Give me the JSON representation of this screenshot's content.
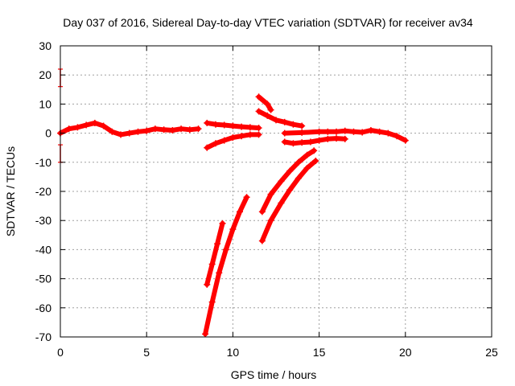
{
  "chart_data": {
    "type": "scatter",
    "title": "Day 037 of 2016, Sidereal Day-to-day VTEC variation (SDTVAR) for receiver av34",
    "xlabel": "GPS time / hours",
    "ylabel": "SDTVAR / TECUs",
    "xlim": [
      0,
      25
    ],
    "ylim": [
      -70,
      30
    ],
    "xticks": [
      0,
      5,
      10,
      15,
      20,
      25
    ],
    "yticks": [
      -70,
      -60,
      -50,
      -40,
      -30,
      -20,
      -10,
      0,
      10,
      20,
      30
    ],
    "grid": true,
    "legend": "none",
    "colors": {
      "series": "#ff0000",
      "grid": "#a0a0a0",
      "axis": "#000000"
    },
    "series": [
      {
        "points": [
          [
            0.0,
            0.0
          ],
          [
            0.5,
            1.5
          ],
          [
            1.0,
            2.0
          ],
          [
            1.5,
            2.8
          ],
          [
            2.0,
            3.5
          ],
          [
            2.5,
            2.5
          ],
          [
            3.0,
            0.5
          ],
          [
            3.5,
            -0.5
          ],
          [
            4.0,
            0.0
          ],
          [
            4.5,
            0.5
          ],
          [
            5.0,
            0.8
          ],
          [
            5.5,
            1.5
          ],
          [
            6.0,
            1.2
          ],
          [
            6.5,
            1.0
          ],
          [
            7.0,
            1.5
          ],
          [
            7.5,
            1.2
          ],
          [
            8.0,
            1.5
          ]
        ]
      },
      {
        "points": [
          [
            8.5,
            -5.0
          ],
          [
            9.0,
            -3.5
          ],
          [
            9.5,
            -2.5
          ],
          [
            10.0,
            -1.5
          ],
          [
            10.5,
            -1.0
          ],
          [
            11.0,
            -0.5
          ],
          [
            11.5,
            -0.5
          ]
        ]
      },
      {
        "points": [
          [
            8.5,
            3.5
          ],
          [
            9.0,
            3.0
          ],
          [
            9.5,
            2.8
          ],
          [
            10.0,
            2.5
          ],
          [
            10.5,
            2.2
          ],
          [
            11.0,
            2.0
          ],
          [
            11.5,
            1.8
          ]
        ]
      },
      {
        "points": [
          [
            11.5,
            12.5
          ],
          [
            12.0,
            10.0
          ],
          [
            12.2,
            8.0
          ]
        ]
      },
      {
        "points": [
          [
            11.5,
            7.5
          ],
          [
            12.0,
            6.0
          ],
          [
            12.5,
            4.5
          ],
          [
            13.0,
            3.8
          ],
          [
            13.5,
            3.0
          ],
          [
            14.0,
            2.5
          ]
        ]
      },
      {
        "points": [
          [
            8.5,
            -52.0
          ],
          [
            8.8,
            -45.0
          ],
          [
            9.1,
            -38.0
          ],
          [
            9.4,
            -31.0
          ]
        ]
      },
      {
        "points": [
          [
            8.4,
            -69.0
          ],
          [
            8.8,
            -58.0
          ],
          [
            9.2,
            -48.0
          ],
          [
            9.6,
            -40.0
          ],
          [
            10.0,
            -33.0
          ],
          [
            10.4,
            -27.0
          ],
          [
            10.8,
            -22.0
          ]
        ]
      },
      {
        "points": [
          [
            11.7,
            -27.0
          ],
          [
            12.2,
            -21.0
          ],
          [
            12.8,
            -16.5
          ],
          [
            13.3,
            -13.0
          ],
          [
            13.8,
            -10.0
          ],
          [
            14.3,
            -7.5
          ],
          [
            14.7,
            -6.0
          ]
        ]
      },
      {
        "points": [
          [
            11.7,
            -37.0
          ],
          [
            12.2,
            -30.0
          ],
          [
            12.8,
            -24.0
          ],
          [
            13.3,
            -19.5
          ],
          [
            13.8,
            -15.5
          ],
          [
            14.3,
            -12.0
          ],
          [
            14.8,
            -9.5
          ]
        ]
      },
      {
        "points": [
          [
            13.0,
            -3.0
          ],
          [
            13.5,
            -3.5
          ],
          [
            14.0,
            -3.2
          ],
          [
            14.5,
            -3.0
          ],
          [
            15.0,
            -2.5
          ],
          [
            15.5,
            -2.0
          ],
          [
            16.0,
            -1.8
          ],
          [
            16.5,
            -2.0
          ]
        ]
      },
      {
        "points": [
          [
            13.0,
            0.0
          ],
          [
            14.0,
            0.2
          ],
          [
            15.0,
            0.5
          ],
          [
            15.5,
            0.5
          ],
          [
            16.0,
            0.5
          ],
          [
            16.5,
            0.8
          ],
          [
            17.0,
            0.5
          ],
          [
            17.5,
            0.3
          ],
          [
            18.0,
            1.0
          ],
          [
            18.5,
            0.5
          ],
          [
            19.0,
            0.0
          ],
          [
            19.5,
            -1.0
          ],
          [
            20.0,
            -2.5
          ]
        ]
      },
      {
        "points": [
          [
            0.0,
            22.0
          ],
          [
            0.0,
            16.0
          ]
        ]
      },
      {
        "points": [
          [
            0.0,
            -4.0
          ],
          [
            0.0,
            -10.0
          ]
        ]
      }
    ]
  }
}
